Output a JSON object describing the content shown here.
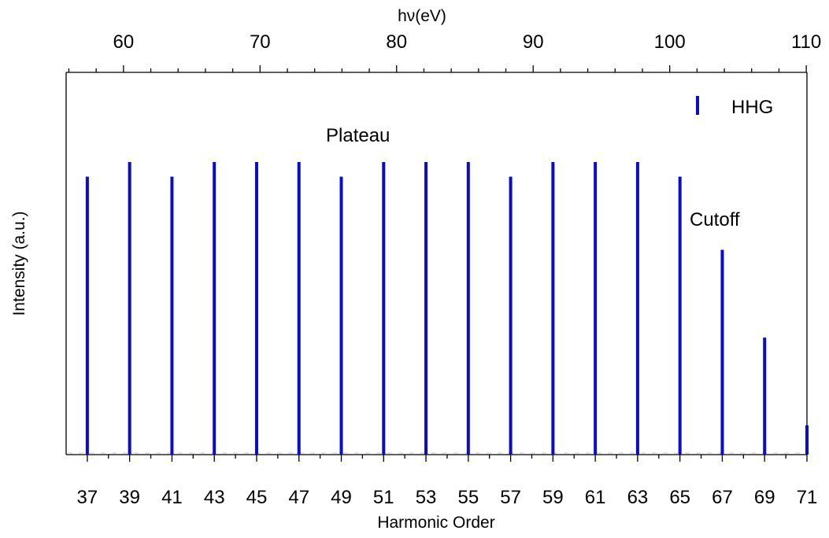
{
  "chart_data": {
    "type": "bar",
    "title": "",
    "xlabel": "Harmonic Order",
    "ylabel": "Intensity (a.u.)",
    "x2label": "hν(eV)",
    "xlim": [
      36.0,
      71.0
    ],
    "ylim": [
      0,
      1.0
    ],
    "x_ticks": [
      "37",
      "39",
      "41",
      "43",
      "45",
      "47",
      "49",
      "51",
      "53",
      "55",
      "57",
      "59",
      "61",
      "63",
      "65",
      "67",
      "69",
      "71"
    ],
    "x2_ticks": [
      60,
      70,
      80,
      90,
      100,
      110
    ],
    "x2_per_order_ev": 1.55,
    "color": "#0b0bcc",
    "legend": {
      "label": "HHG",
      "position": "top-right"
    },
    "annotations": [
      {
        "text": "Plateau",
        "near_order": 49.5
      },
      {
        "text": "Cutoff",
        "near_order": 67
      }
    ],
    "series": [
      {
        "name": "HHG",
        "x": [
          37,
          39,
          41,
          43,
          45,
          47,
          49,
          51,
          53,
          55,
          57,
          59,
          61,
          63,
          65,
          67,
          69,
          71
        ],
        "values": [
          0.95,
          1.0,
          0.95,
          1.0,
          1.0,
          1.0,
          0.95,
          1.0,
          1.0,
          1.0,
          0.95,
          1.0,
          1.0,
          1.0,
          0.95,
          0.7,
          0.4,
          0.1
        ]
      }
    ]
  }
}
